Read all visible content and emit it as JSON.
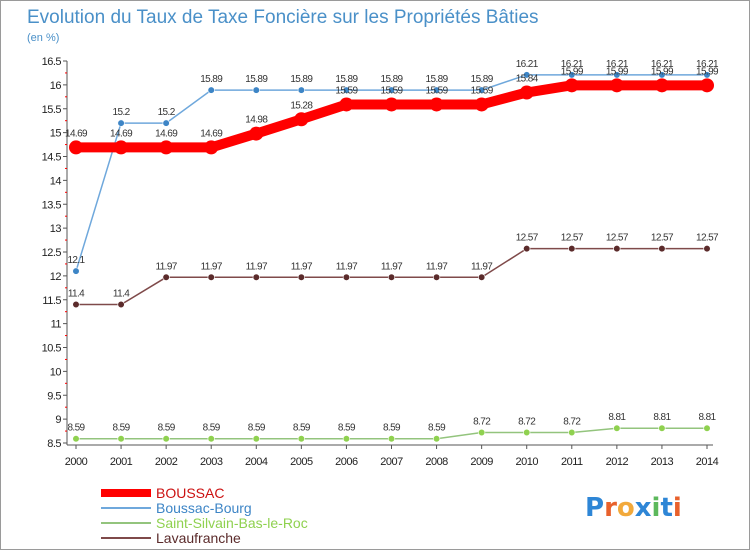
{
  "chart_data": {
    "type": "line",
    "title": "Evolution du Taux de Taxe Foncière sur les Propriétés Bâties",
    "unit_label": "(en %)",
    "xlabel": "",
    "ylabel": "",
    "ylim": [
      8.5,
      16.5
    ],
    "yticks": [
      8.5,
      9,
      9.5,
      10,
      10.5,
      11,
      11.5,
      12,
      12.5,
      13,
      13.5,
      14,
      14.5,
      15,
      15.5,
      16,
      16.5
    ],
    "x": [
      "2000",
      "2001",
      "2002",
      "2003",
      "2004",
      "2005",
      "2006",
      "2007",
      "2008",
      "2009",
      "2010",
      "2011",
      "2012",
      "2013",
      "2014"
    ],
    "grid": false,
    "legend_position": "bottom-left",
    "series": [
      {
        "name": "BOUSSAC",
        "color": "#ff0000",
        "emphasis": true,
        "values": [
          14.69,
          14.69,
          14.69,
          14.69,
          14.98,
          15.28,
          15.59,
          15.59,
          15.59,
          15.59,
          15.84,
          15.99,
          15.99,
          15.99,
          15.99
        ]
      },
      {
        "name": "Boussac-Bourg",
        "color": "#6fa8dc",
        "marker_color": "#3d85c6",
        "values": [
          12.1,
          15.2,
          15.2,
          15.89,
          15.89,
          15.89,
          15.89,
          15.89,
          15.89,
          15.89,
          16.21,
          16.21,
          16.21,
          16.21,
          16.21
        ]
      },
      {
        "name": "Saint-Silvain-Bas-le-Roc",
        "color": "#93c47d",
        "marker_color": "#8fd14f",
        "values": [
          8.59,
          8.59,
          8.59,
          8.59,
          8.59,
          8.59,
          8.59,
          8.59,
          8.59,
          8.72,
          8.72,
          8.72,
          8.81,
          8.81,
          8.81
        ]
      },
      {
        "name": "Lavaufranche",
        "color": "#7f4a4a",
        "marker_color": "#5b2b2b",
        "values": [
          11.4,
          11.4,
          11.97,
          11.97,
          11.97,
          11.97,
          11.97,
          11.97,
          11.97,
          11.97,
          12.57,
          12.57,
          12.57,
          12.57,
          12.57
        ]
      }
    ],
    "data_labels": {
      "BOUSSAC": [
        "14.69",
        "14.69",
        "14.69",
        "14.69",
        "14.98",
        "15.28",
        "15.59",
        "15.59",
        "15.59",
        "15.59",
        "15.84",
        "15.99",
        "15.99",
        "15.99",
        "15.99"
      ],
      "Boussac-Bourg": [
        "12.1",
        "15.2",
        "15.2",
        "15.89",
        "15.89",
        "15.89",
        "15.89",
        "15.89",
        "15.89",
        "15.89",
        "16.21",
        "16.21",
        "16.21",
        "16.21",
        "16.21"
      ],
      "Saint-Silvain-Bas-le-Roc": [
        "8.59",
        "8.59",
        "8.59",
        "8.59",
        "8.59",
        "8.59",
        "8.59",
        "8.59",
        "8.59",
        "8.72",
        "8.72",
        "8.72",
        "8.81",
        "8.81",
        "8.81"
      ],
      "Lavaufranche": [
        "11.4",
        "11.4",
        "11.97",
        "11.97",
        "11.97",
        "11.97",
        "11.97",
        "11.97",
        "11.97",
        "11.97",
        "12.57",
        "12.57",
        "12.57",
        "12.57",
        "12.57"
      ]
    }
  },
  "branding": {
    "logo_text": "Proxiti",
    "logo_letters": [
      "P",
      "r",
      "o",
      "x",
      "i",
      "t",
      "i"
    ],
    "logo_colors": [
      "#2e86d6",
      "#e8612c",
      "#f2a93b",
      "#2e86d6",
      "#5cb85c",
      "#2e86d6",
      "#e8612c"
    ]
  },
  "colors": {
    "title": "#4a90c8",
    "axis": "#555555",
    "axis_accent": "#ff0000"
  }
}
